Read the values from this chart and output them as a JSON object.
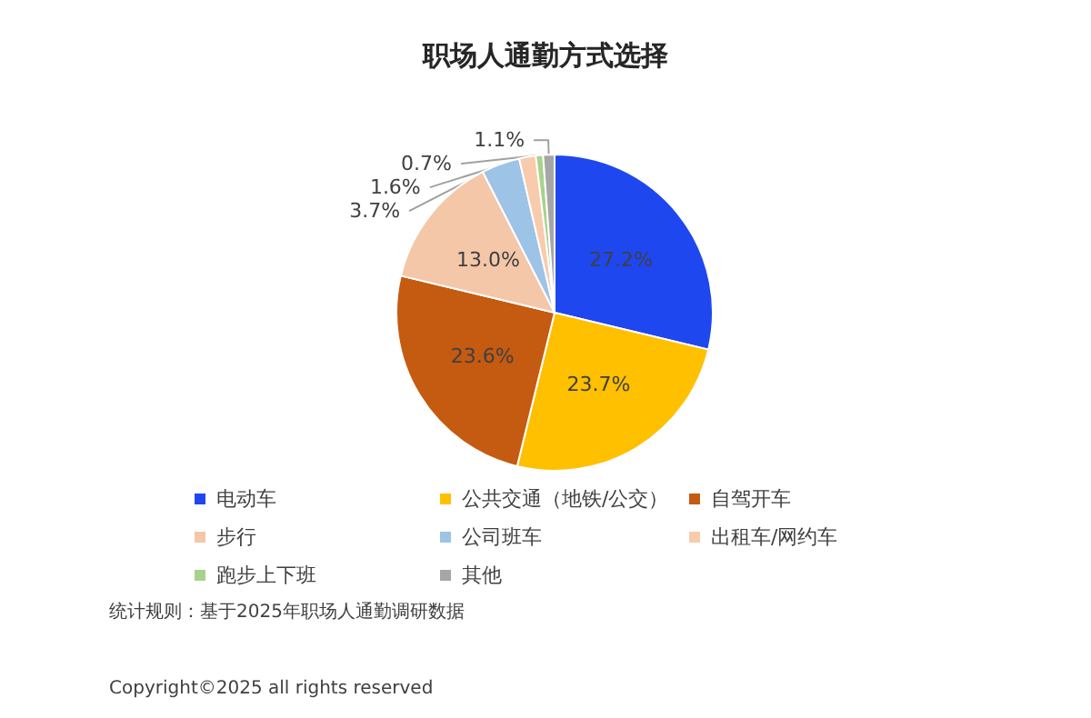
{
  "chart_data": {
    "type": "pie",
    "title": "职场人通勤方式选择",
    "categories": [
      "电动车",
      "公共交通（地铁/公交）",
      "自驾开车",
      "步行",
      "公司班车",
      "出租车/网约车",
      "跑步上下班",
      "其他"
    ],
    "values": [
      27.2,
      23.7,
      23.6,
      13.0,
      3.7,
      1.6,
      0.7,
      1.1
    ],
    "colors": [
      "#1f47f0",
      "#ffc000",
      "#c55a11",
      "#f4c7a8",
      "#9dc3e6",
      "#f8cbad",
      "#a9d18e",
      "#a6a6a6"
    ],
    "value_labels": [
      "27.2%",
      "23.7%",
      "23.6%",
      "13.0%",
      "3.7%",
      "1.6%",
      "0.7%",
      "1.1%"
    ],
    "legend": "bottom",
    "annotations": [
      "统计规则：基于2025年职场人通勤调研数据",
      "Copyright©2025 all rights reserved"
    ]
  }
}
